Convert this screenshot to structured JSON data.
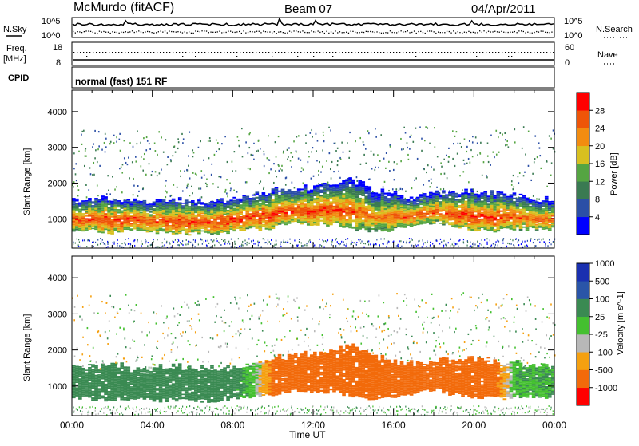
{
  "header": {
    "station": "McMurdo (fitACF)",
    "beam": "Beam 07",
    "date": "04/Apr/2011"
  },
  "top_panels": {
    "noise": {
      "left_label": "N.Sky",
      "right_label": "N.Search",
      "left_ticks": [
        "10^5",
        "10^0"
      ],
      "right_ticks": [
        "10^5",
        "10^0"
      ]
    },
    "freq": {
      "left_label_1": "Freq.",
      "left_label_2": "[MHz]",
      "right_label": "Nave",
      "left_ticks": [
        "18",
        "8"
      ],
      "right_ticks": [
        "60",
        "0"
      ]
    },
    "cpid": {
      "label": "CPID",
      "mode_text": "normal (fast) 151 RF"
    }
  },
  "colors": {
    "power_scale": [
      "#0000ff",
      "#2b4fa6",
      "#3a7a52",
      "#55a542",
      "#d8c020",
      "#f28c10",
      "#ee5508",
      "#ff0000"
    ],
    "velocity_scale": [
      "#ff0000",
      "#f26a0a",
      "#f5a010",
      "#b8b8b8",
      "#44c030",
      "#3a8a52",
      "#2a55a8",
      "#1a30b0"
    ]
  },
  "chart_data": [
    {
      "type": "heatmap",
      "name": "power",
      "ylabel": "Slant Range [km]",
      "ylim": [
        180,
        4600
      ],
      "yticks": [
        "1000",
        "2000",
        "3000",
        "4000"
      ],
      "xlim": [
        0,
        24
      ],
      "colorbar_label": "Power [dB]",
      "colorbar_ticks": [
        "4",
        "8",
        "12",
        "16",
        "20",
        "24",
        "28"
      ],
      "colorbar_range": [
        0,
        32
      ],
      "x": [
        0,
        1,
        2,
        3,
        4,
        5,
        6,
        7,
        8,
        9,
        10,
        11,
        12,
        13,
        14,
        15,
        16,
        17,
        18,
        19,
        20,
        21,
        22,
        23
      ],
      "band_low_km": [
        700,
        650,
        620,
        650,
        600,
        620,
        580,
        600,
        650,
        700,
        750,
        900,
        800,
        850,
        700,
        650,
        700,
        800,
        900,
        750,
        700,
        650,
        700,
        700
      ],
      "band_high_km": [
        1500,
        1550,
        1600,
        1500,
        1500,
        1550,
        1500,
        1500,
        1550,
        1650,
        1800,
        1850,
        1900,
        2000,
        2100,
        1800,
        1700,
        1600,
        1700,
        1750,
        1750,
        1700,
        1650,
        1550
      ],
      "peak_power_db": [
        26,
        28,
        28,
        27,
        27,
        28,
        28,
        28,
        28,
        28,
        28,
        28,
        28,
        28,
        26,
        24,
        26,
        26,
        26,
        28,
        28,
        28,
        26,
        26
      ]
    },
    {
      "type": "heatmap",
      "name": "velocity",
      "ylabel": "Slant Range [km]",
      "ylim": [
        180,
        4600
      ],
      "yticks": [
        "1000",
        "2000",
        "3000",
        "4000"
      ],
      "xlabel": "Time UT",
      "xlim": [
        0,
        24
      ],
      "xticks": [
        "00:00",
        "04:00",
        "08:00",
        "12:00",
        "16:00",
        "20:00",
        "00:00"
      ],
      "colorbar_label": "Velocity [m s^-1]",
      "colorbar_ticks": [
        "1000",
        "500",
        "100",
        "25",
        "-25",
        "-100",
        "-500",
        "-1000"
      ],
      "x": [
        0,
        1,
        2,
        3,
        4,
        5,
        6,
        7,
        8,
        9,
        10,
        11,
        12,
        13,
        14,
        15,
        16,
        17,
        18,
        19,
        20,
        21,
        22,
        23
      ],
      "band_low_km": [
        700,
        650,
        620,
        650,
        600,
        620,
        580,
        600,
        650,
        700,
        750,
        900,
        800,
        850,
        700,
        650,
        700,
        800,
        900,
        750,
        700,
        650,
        700,
        700
      ],
      "band_high_km": [
        1500,
        1550,
        1600,
        1500,
        1500,
        1550,
        1500,
        1500,
        1550,
        1650,
        1800,
        1850,
        1900,
        2000,
        2100,
        1800,
        1700,
        1600,
        1700,
        1750,
        1750,
        1700,
        1650,
        1550
      ],
      "velocity_ms": [
        150,
        200,
        200,
        200,
        200,
        200,
        200,
        200,
        150,
        50,
        -150,
        -200,
        -200,
        -200,
        -200,
        -200,
        -200,
        -200,
        -200,
        -200,
        -200,
        -150,
        80,
        100
      ]
    }
  ]
}
